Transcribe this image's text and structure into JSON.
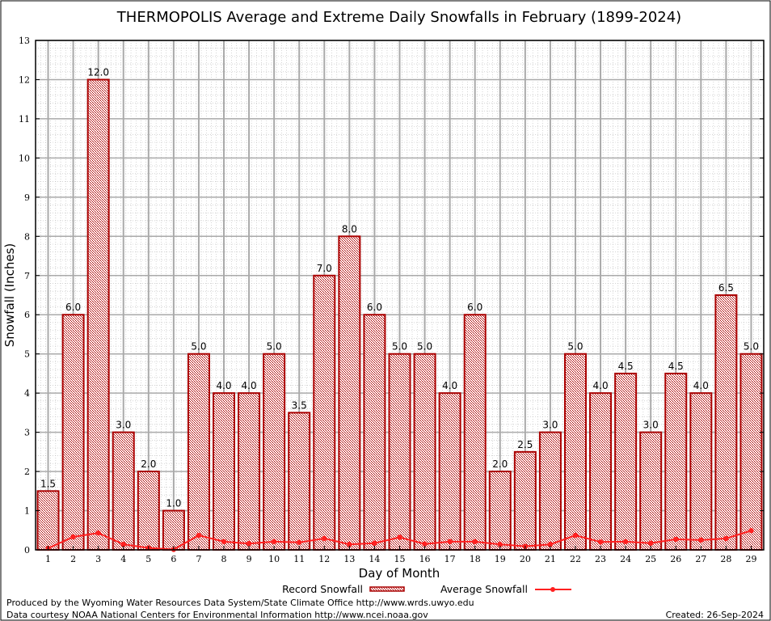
{
  "chart_data": {
    "type": "bar",
    "title": "THERMOPOLIS Average and Extreme Daily Snowfalls in February (1899-2024)",
    "xlabel": "Day of Month",
    "ylabel": "Snowfall (Inches)",
    "ylim": [
      0,
      13
    ],
    "yticks": [
      "0",
      "1",
      "2",
      "3",
      "4",
      "5",
      "6",
      "7",
      "8",
      "9",
      "10",
      "11",
      "12",
      "13"
    ],
    "grid": true,
    "legend_position": "bottom",
    "categories": [
      "1",
      "2",
      "3",
      "4",
      "5",
      "6",
      "7",
      "8",
      "9",
      "10",
      "11",
      "12",
      "13",
      "14",
      "15",
      "16",
      "17",
      "18",
      "19",
      "20",
      "21",
      "22",
      "23",
      "24",
      "25",
      "26",
      "27",
      "28",
      "29"
    ],
    "series": [
      {
        "name": "Record Snowfall",
        "type": "bar",
        "color": "#aa0000",
        "values": [
          1.5,
          6.0,
          12.0,
          3.0,
          2.0,
          1.0,
          5.0,
          4.0,
          4.0,
          5.0,
          3.5,
          7.0,
          8.0,
          6.0,
          5.0,
          5.0,
          4.0,
          6.0,
          2.0,
          2.5,
          3.0,
          5.0,
          4.0,
          4.5,
          3.0,
          4.5,
          4.0,
          6.5,
          5.0
        ],
        "labels": [
          "1.5",
          "6.0",
          "12.0",
          "3.0",
          "2.0",
          "1.0",
          "5.0",
          "4.0",
          "4.0",
          "5.0",
          "3.5",
          "7.0",
          "8.0",
          "6.0",
          "5.0",
          "5.0",
          "4.0",
          "6.0",
          "2.0",
          "2.5",
          "3.0",
          "5.0",
          "4.0",
          "4.5",
          "3.0",
          "4.5",
          "4.0",
          "6.5",
          "5.0"
        ]
      },
      {
        "name": "Average Snowfall",
        "type": "line",
        "color": "#ff2020",
        "values": [
          0.04,
          0.33,
          0.43,
          0.14,
          0.05,
          0.01,
          0.37,
          0.21,
          0.16,
          0.21,
          0.19,
          0.29,
          0.14,
          0.17,
          0.32,
          0.15,
          0.21,
          0.21,
          0.14,
          0.09,
          0.14,
          0.37,
          0.2,
          0.21,
          0.17,
          0.27,
          0.25,
          0.29,
          0.49
        ]
      }
    ]
  },
  "footer": {
    "line1": "Produced by the Wyoming Water Resources Data System/State Climate Office http://www.wrds.uwyo.edu",
    "line2": "Data courtesy NOAA National Centers for Environmental Information http://www.ncei.noaa.gov",
    "created": "Created:  26-Sep-2024"
  }
}
